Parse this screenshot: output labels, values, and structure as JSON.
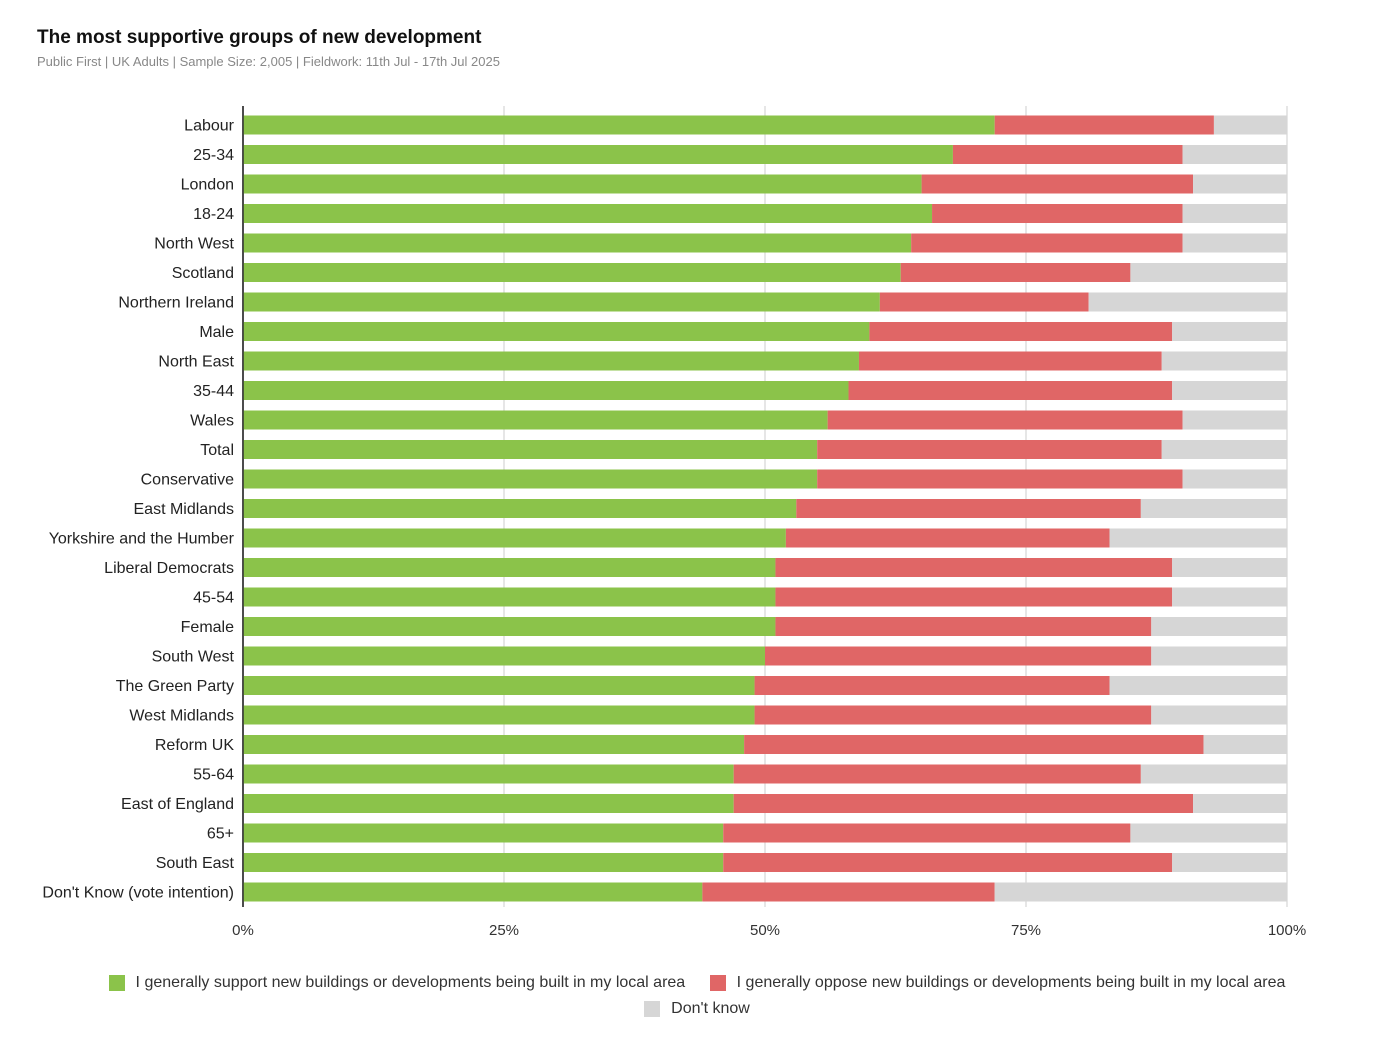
{
  "chart_data": {
    "type": "bar",
    "orientation": "horizontal",
    "stacked": true,
    "title": "The most supportive groups of new development",
    "subtitle": "Public First | UK Adults | Sample Size: 2,005 | Fieldwork: 11th Jul - 17th Jul 2025",
    "xlabel": "",
    "ylabel": "",
    "xlim": [
      0,
      100
    ],
    "x_ticks": [
      "0%",
      "25%",
      "50%",
      "75%",
      "100%"
    ],
    "grid": true,
    "legend_position": "bottom",
    "categories": [
      "Labour",
      "25-34",
      "London",
      "18-24",
      "North West",
      "Scotland",
      "Northern Ireland",
      "Male",
      "North East",
      "35-44",
      "Wales",
      "Total",
      "Conservative",
      "East Midlands",
      "Yorkshire and the Humber",
      "Liberal Democrats",
      "45-54",
      "Female",
      "South West",
      "The Green Party",
      "West Midlands",
      "Reform UK",
      "55-64",
      "East of England",
      "65+",
      "South East",
      "Don't Know (vote intention)"
    ],
    "series": [
      {
        "name": "I generally support new buildings or developments being built in my local area",
        "color": "#8bc34a",
        "values": [
          72,
          68,
          65,
          66,
          64,
          63,
          61,
          60,
          59,
          58,
          56,
          55,
          55,
          53,
          52,
          51,
          51,
          51,
          50,
          49,
          49,
          48,
          47,
          47,
          46,
          46,
          44
        ]
      },
      {
        "name": "I generally oppose new buildings or developments being built in my local area",
        "color": "#e06666",
        "values": [
          21,
          22,
          26,
          24,
          26,
          22,
          20,
          29,
          29,
          31,
          34,
          33,
          35,
          33,
          31,
          38,
          38,
          36,
          37,
          34,
          38,
          44,
          39,
          44,
          39,
          43,
          28
        ]
      },
      {
        "name": "Don't know",
        "color": "#d6d6d6",
        "values": [
          7,
          10,
          9,
          10,
          10,
          15,
          19,
          11,
          12,
          11,
          10,
          12,
          10,
          14,
          17,
          11,
          11,
          13,
          13,
          17,
          13,
          8,
          14,
          9,
          15,
          11,
          28
        ]
      }
    ]
  }
}
